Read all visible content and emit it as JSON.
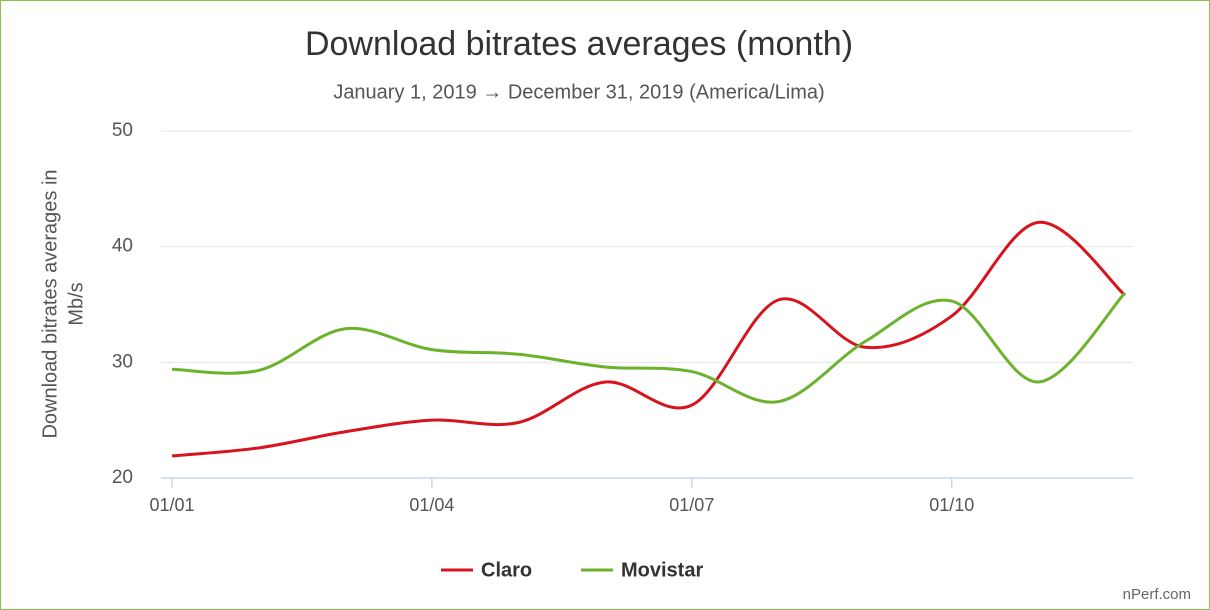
{
  "chart_data": {
    "type": "line",
    "title": "Download bitrates averages (month)",
    "subtitle": "January 1, 2019 → December 31, 2019 (America/Lima)",
    "y_label": [
      "Download bitrates averages in",
      "Mb/s"
    ],
    "credit": "nPerf.com",
    "categories": [
      "01/01",
      null,
      null,
      "01/04",
      null,
      null,
      "01/07",
      null,
      null,
      "01/10",
      null,
      null
    ],
    "series": [
      {
        "name": "Claro",
        "color": "#d7141e",
        "values": [
          21.9,
          22.6,
          24.0,
          25.0,
          24.8,
          28.3,
          26.3,
          35.4,
          31.3,
          34.0,
          42.1,
          35.8
        ]
      },
      {
        "name": "Movistar",
        "color": "#6cb32d",
        "values": [
          29.4,
          29.3,
          32.9,
          31.1,
          30.7,
          29.6,
          29.2,
          26.6,
          31.8,
          35.3,
          28.3,
          36.0
        ]
      }
    ],
    "ylim": [
      20,
      50
    ],
    "yticks": [
      20,
      30,
      40,
      50
    ],
    "grid": true
  }
}
